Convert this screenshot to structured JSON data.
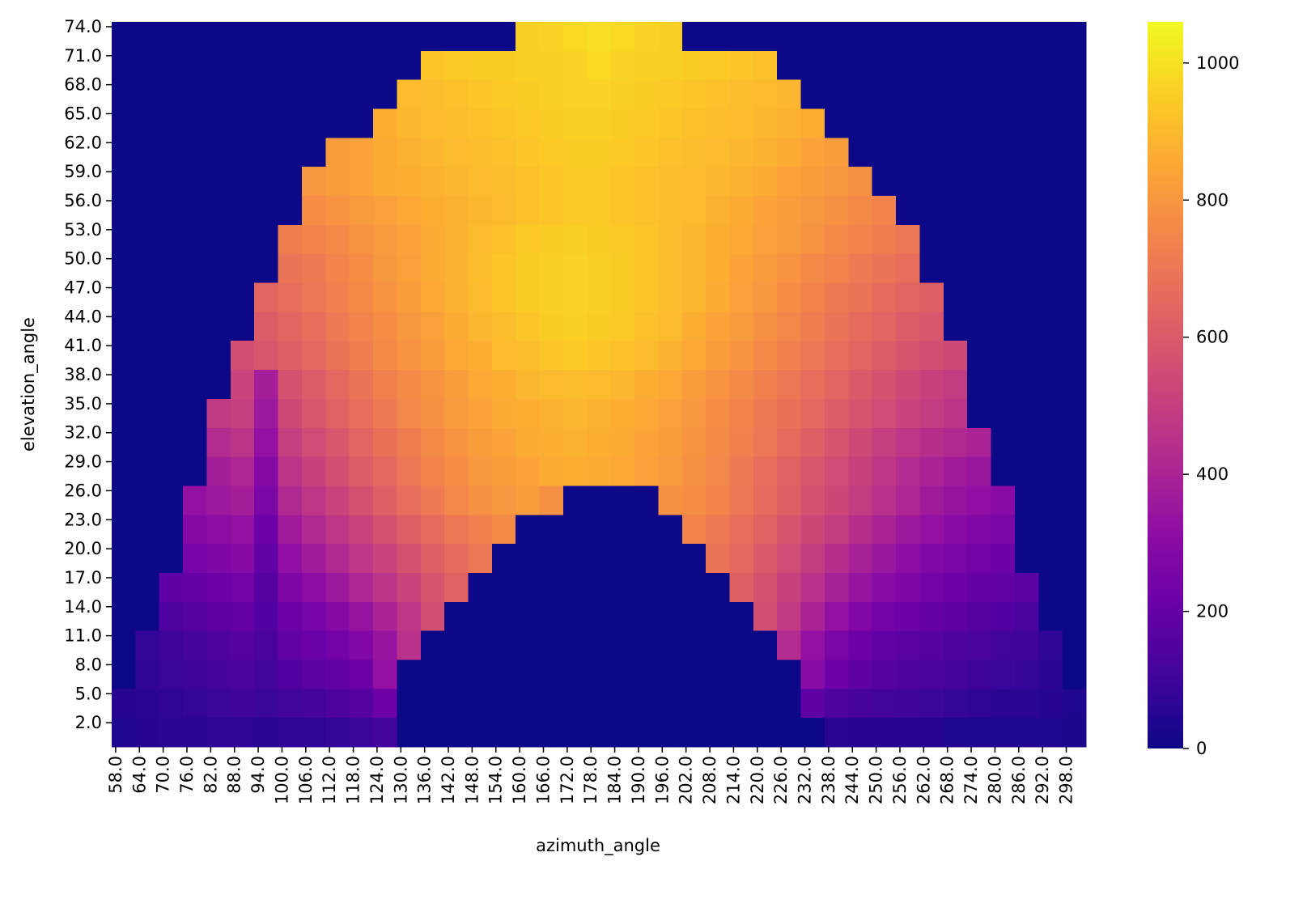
{
  "chart_data": {
    "type": "heatmap",
    "colormap": "plasma",
    "x_label": "azimuth_angle",
    "y_label": "elevation_angle",
    "categories": [
      "58.0",
      "64.0",
      "70.0",
      "76.0",
      "82.0",
      "88.0",
      "94.0",
      "100.0",
      "106.0",
      "112.0",
      "118.0",
      "124.0",
      "130.0",
      "136.0",
      "142.0",
      "148.0",
      "154.0",
      "160.0",
      "166.0",
      "172.0",
      "178.0",
      "184.0",
      "190.0",
      "196.0",
      "202.0",
      "208.0",
      "214.0",
      "220.0",
      "226.0",
      "232.0",
      "238.0",
      "244.0",
      "250.0",
      "256.0",
      "262.0",
      "268.0",
      "274.0",
      "280.0",
      "286.0",
      "292.0",
      "298.0"
    ],
    "rows": [
      "74.0",
      "71.0",
      "68.0",
      "65.0",
      "62.0",
      "59.0",
      "56.0",
      "53.0",
      "50.0",
      "47.0",
      "44.0",
      "41.0",
      "38.0",
      "35.0",
      "32.0",
      "29.0",
      "26.0",
      "23.0",
      "20.0",
      "17.0",
      "14.0",
      "11.0",
      "8.0",
      "5.0",
      "2.0"
    ],
    "values": [
      [
        0,
        0,
        0,
        0,
        0,
        0,
        0,
        0,
        0,
        0,
        0,
        0,
        0,
        0,
        0,
        0,
        0,
        960,
        970,
        980,
        990,
        980,
        970,
        960,
        0,
        0,
        0,
        0,
        0,
        0,
        0,
        0,
        0,
        0,
        0,
        0,
        0,
        0,
        0,
        0,
        0
      ],
      [
        0,
        0,
        0,
        0,
        0,
        0,
        0,
        0,
        0,
        0,
        0,
        0,
        0,
        930,
        940,
        950,
        950,
        960,
        960,
        970,
        980,
        970,
        960,
        960,
        950,
        940,
        930,
        920,
        0,
        0,
        0,
        0,
        0,
        0,
        0,
        0,
        0,
        0,
        0,
        0,
        0
      ],
      [
        0,
        0,
        0,
        0,
        0,
        0,
        0,
        0,
        0,
        0,
        0,
        0,
        900,
        910,
        920,
        930,
        940,
        950,
        960,
        970,
        970,
        960,
        950,
        940,
        930,
        920,
        910,
        900,
        890,
        0,
        0,
        0,
        0,
        0,
        0,
        0,
        0,
        0,
        0,
        0,
        0
      ],
      [
        0,
        0,
        0,
        0,
        0,
        0,
        0,
        0,
        0,
        0,
        0,
        870,
        890,
        900,
        910,
        920,
        930,
        940,
        950,
        960,
        960,
        950,
        940,
        930,
        920,
        910,
        900,
        890,
        880,
        870,
        0,
        0,
        0,
        0,
        0,
        0,
        0,
        0,
        0,
        0,
        0
      ],
      [
        0,
        0,
        0,
        0,
        0,
        0,
        0,
        0,
        0,
        820,
        840,
        860,
        880,
        890,
        900,
        910,
        920,
        930,
        940,
        950,
        950,
        940,
        930,
        920,
        910,
        900,
        890,
        880,
        860,
        840,
        820,
        0,
        0,
        0,
        0,
        0,
        0,
        0,
        0,
        0,
        0
      ],
      [
        0,
        0,
        0,
        0,
        0,
        0,
        0,
        0,
        800,
        820,
        840,
        860,
        870,
        880,
        890,
        900,
        910,
        920,
        930,
        940,
        940,
        930,
        920,
        910,
        900,
        890,
        880,
        860,
        840,
        820,
        800,
        780,
        0,
        0,
        0,
        0,
        0,
        0,
        0,
        0,
        0
      ],
      [
        0,
        0,
        0,
        0,
        0,
        0,
        0,
        0,
        770,
        790,
        810,
        830,
        850,
        870,
        880,
        890,
        900,
        920,
        930,
        940,
        940,
        930,
        920,
        910,
        900,
        880,
        860,
        840,
        820,
        800,
        780,
        760,
        740,
        0,
        0,
        0,
        0,
        0,
        0,
        0,
        0
      ],
      [
        0,
        0,
        0,
        0,
        0,
        0,
        0,
        720,
        740,
        760,
        790,
        810,
        840,
        860,
        880,
        900,
        920,
        940,
        950,
        960,
        950,
        940,
        930,
        910,
        890,
        870,
        850,
        830,
        810,
        790,
        760,
        740,
        720,
        700,
        0,
        0,
        0,
        0,
        0,
        0,
        0
      ],
      [
        0,
        0,
        0,
        0,
        0,
        0,
        0,
        690,
        710,
        740,
        770,
        800,
        830,
        860,
        880,
        910,
        930,
        950,
        960,
        970,
        960,
        950,
        930,
        910,
        890,
        870,
        840,
        810,
        790,
        760,
        740,
        710,
        690,
        670,
        0,
        0,
        0,
        0,
        0,
        0,
        0
      ],
      [
        0,
        0,
        0,
        0,
        0,
        0,
        640,
        670,
        700,
        730,
        760,
        790,
        820,
        850,
        880,
        900,
        930,
        950,
        960,
        970,
        960,
        950,
        930,
        910,
        890,
        860,
        830,
        800,
        770,
        740,
        710,
        690,
        660,
        640,
        620,
        0,
        0,
        0,
        0,
        0,
        0
      ],
      [
        0,
        0,
        0,
        0,
        0,
        0,
        610,
        640,
        670,
        710,
        740,
        770,
        800,
        830,
        860,
        890,
        910,
        930,
        950,
        960,
        950,
        940,
        920,
        900,
        870,
        840,
        810,
        780,
        750,
        720,
        690,
        660,
        640,
        610,
        590,
        0,
        0,
        0,
        0,
        0,
        0
      ],
      [
        0,
        0,
        0,
        0,
        0,
        560,
        590,
        620,
        650,
        690,
        720,
        760,
        790,
        820,
        850,
        870,
        900,
        910,
        930,
        940,
        930,
        920,
        900,
        880,
        850,
        820,
        790,
        760,
        730,
        700,
        670,
        640,
        610,
        580,
        560,
        540,
        0,
        0,
        0,
        0,
        0
      ],
      [
        0,
        0,
        0,
        0,
        0,
        520,
        380,
        570,
        610,
        650,
        690,
        730,
        760,
        790,
        820,
        850,
        870,
        890,
        900,
        910,
        900,
        890,
        870,
        850,
        820,
        790,
        760,
        730,
        700,
        670,
        640,
        600,
        570,
        540,
        510,
        490,
        0,
        0,
        0,
        0,
        0
      ],
      [
        0,
        0,
        0,
        0,
        480,
        500,
        360,
        540,
        590,
        630,
        670,
        710,
        750,
        780,
        810,
        840,
        860,
        870,
        880,
        890,
        880,
        870,
        850,
        830,
        800,
        770,
        740,
        710,
        680,
        650,
        610,
        580,
        550,
        520,
        490,
        460,
        0,
        0,
        0,
        0,
        0
      ],
      [
        0,
        0,
        0,
        0,
        430,
        460,
        330,
        500,
        550,
        590,
        640,
        680,
        720,
        760,
        790,
        820,
        840,
        860,
        870,
        880,
        870,
        860,
        840,
        820,
        790,
        760,
        730,
        700,
        660,
        620,
        580,
        540,
        500,
        470,
        440,
        420,
        400,
        0,
        0,
        0,
        0
      ],
      [
        0,
        0,
        0,
        0,
        380,
        410,
        290,
        460,
        510,
        560,
        610,
        650,
        700,
        740,
        770,
        800,
        820,
        840,
        860,
        870,
        860,
        850,
        830,
        810,
        780,
        750,
        710,
        670,
        630,
        590,
        550,
        510,
        470,
        430,
        400,
        370,
        350,
        0,
        0,
        0,
        0
      ],
      [
        0,
        0,
        0,
        330,
        360,
        380,
        260,
        420,
        470,
        520,
        570,
        620,
        670,
        710,
        750,
        780,
        800,
        820,
        780,
        0,
        0,
        0,
        0,
        780,
        770,
        740,
        700,
        660,
        620,
        570,
        530,
        490,
        450,
        410,
        370,
        340,
        320,
        300,
        0,
        0,
        0
      ],
      [
        0,
        0,
        0,
        290,
        310,
        330,
        220,
        370,
        420,
        470,
        520,
        570,
        620,
        660,
        700,
        730,
        760,
        0,
        0,
        0,
        0,
        0,
        0,
        0,
        740,
        710,
        670,
        630,
        580,
        530,
        490,
        440,
        400,
        360,
        330,
        300,
        280,
        260,
        0,
        0,
        0
      ],
      [
        0,
        0,
        0,
        250,
        270,
        290,
        190,
        320,
        370,
        420,
        470,
        520,
        570,
        620,
        660,
        700,
        0,
        0,
        0,
        0,
        0,
        0,
        0,
        0,
        0,
        690,
        650,
        600,
        550,
        490,
        440,
        390,
        350,
        310,
        280,
        260,
        240,
        220,
        0,
        0,
        0
      ],
      [
        0,
        0,
        180,
        200,
        220,
        240,
        160,
        270,
        310,
        360,
        410,
        460,
        520,
        580,
        630,
        0,
        0,
        0,
        0,
        0,
        0,
        0,
        0,
        0,
        0,
        0,
        620,
        570,
        510,
        450,
        390,
        340,
        300,
        270,
        240,
        220,
        200,
        190,
        170,
        0,
        0
      ],
      [
        0,
        0,
        140,
        160,
        180,
        200,
        150,
        220,
        250,
        290,
        340,
        400,
        470,
        560,
        0,
        0,
        0,
        0,
        0,
        0,
        0,
        0,
        0,
        0,
        0,
        0,
        0,
        560,
        480,
        400,
        330,
        280,
        240,
        220,
        200,
        180,
        160,
        150,
        130,
        0,
        0
      ],
      [
        0,
        80,
        100,
        120,
        140,
        160,
        130,
        190,
        210,
        240,
        280,
        340,
        450,
        0,
        0,
        0,
        0,
        0,
        0,
        0,
        0,
        0,
        0,
        0,
        0,
        0,
        0,
        0,
        430,
        330,
        260,
        220,
        190,
        170,
        160,
        140,
        130,
        110,
        100,
        70,
        0
      ],
      [
        0,
        70,
        90,
        100,
        120,
        130,
        110,
        150,
        170,
        190,
        220,
        330,
        0,
        0,
        0,
        0,
        0,
        0,
        0,
        0,
        0,
        0,
        0,
        0,
        0,
        0,
        0,
        0,
        0,
        300,
        220,
        180,
        160,
        140,
        130,
        120,
        100,
        90,
        80,
        60,
        0
      ],
      [
        50,
        60,
        70,
        80,
        90,
        100,
        90,
        110,
        120,
        140,
        160,
        220,
        0,
        0,
        0,
        0,
        0,
        0,
        0,
        0,
        0,
        0,
        0,
        0,
        0,
        0,
        0,
        0,
        0,
        180,
        140,
        120,
        110,
        100,
        90,
        80,
        70,
        60,
        60,
        50,
        40
      ],
      [
        40,
        50,
        60,
        60,
        70,
        70,
        60,
        70,
        70,
        80,
        90,
        110,
        0,
        0,
        0,
        0,
        0,
        0,
        0,
        0,
        0,
        0,
        0,
        0,
        0,
        0,
        0,
        0,
        0,
        0,
        60,
        50,
        50,
        50,
        50,
        40,
        40,
        40,
        40,
        40,
        30
      ]
    ],
    "clim": [
      0,
      1060
    ],
    "cticks": [
      0,
      200,
      400,
      600,
      800,
      1000
    ]
  }
}
